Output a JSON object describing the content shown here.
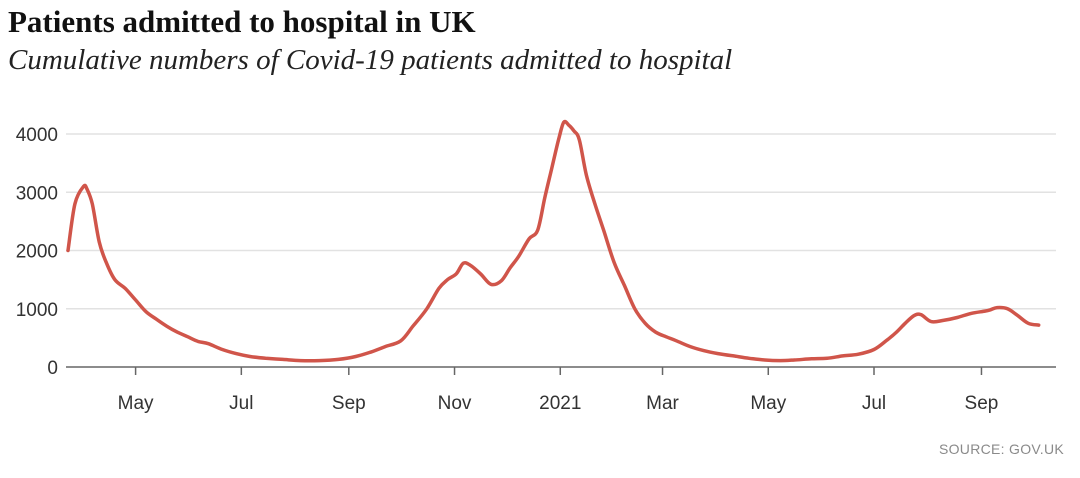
{
  "header": {
    "title": "Patients admitted to hospital in UK",
    "subtitle": "Cumulative numbers of Covid-19 patients admitted to hospital"
  },
  "footer": {
    "source": "SOURCE: GOV.UK"
  },
  "colors": {
    "line": "#d0554a",
    "grid": "#e2e2e2",
    "baseline": "#666666",
    "text": "#333333"
  },
  "chart_data": {
    "type": "line",
    "title": "Patients admitted to hospital in UK",
    "subtitle": "Cumulative numbers of Covid-19 patients admitted to hospital",
    "xlabel": "",
    "ylabel": "",
    "ylim": [
      0,
      4000
    ],
    "yticks": [
      0,
      1000,
      2000,
      3000,
      4000
    ],
    "ytick_labels": [
      "0",
      "1000",
      "2000",
      "3000",
      "4000"
    ],
    "xlim": [
      "2020-03-23",
      "2021-10-14"
    ],
    "xticks": [
      {
        "date": "2020-05-01",
        "label": "May"
      },
      {
        "date": "2020-07-01",
        "label": "Jul"
      },
      {
        "date": "2020-09-01",
        "label": "Sep"
      },
      {
        "date": "2020-11-01",
        "label": "Nov"
      },
      {
        "date": "2021-01-01",
        "label": "2021"
      },
      {
        "date": "2021-03-01",
        "label": "Mar"
      },
      {
        "date": "2021-05-01",
        "label": "May"
      },
      {
        "date": "2021-07-01",
        "label": "Jul"
      },
      {
        "date": "2021-09-01",
        "label": "Sep"
      }
    ],
    "grid": true,
    "series": [
      {
        "x": [
          "2020-03-23",
          "2020-03-27",
          "2020-04-01",
          "2020-04-03",
          "2020-04-06",
          "2020-04-10",
          "2020-04-14",
          "2020-04-19",
          "2020-04-25",
          "2020-05-01",
          "2020-05-07",
          "2020-05-13",
          "2020-05-19",
          "2020-05-25",
          "2020-05-31",
          "2020-06-06",
          "2020-06-12",
          "2020-06-20",
          "2020-06-28",
          "2020-07-06",
          "2020-07-15",
          "2020-07-25",
          "2020-08-04",
          "2020-08-15",
          "2020-08-26",
          "2020-09-05",
          "2020-09-14",
          "2020-09-22",
          "2020-10-01",
          "2020-10-08",
          "2020-10-16",
          "2020-10-23",
          "2020-10-28",
          "2020-11-02",
          "2020-11-06",
          "2020-11-10",
          "2020-11-16",
          "2020-11-22",
          "2020-11-28",
          "2020-12-03",
          "2020-12-08",
          "2020-12-14",
          "2020-12-19",
          "2020-12-23",
          "2020-12-27",
          "2020-12-31",
          "2021-01-03",
          "2021-01-06",
          "2021-01-09",
          "2021-01-12",
          "2021-01-16",
          "2021-01-21",
          "2021-01-26",
          "2021-02-01",
          "2021-02-07",
          "2021-02-13",
          "2021-02-19",
          "2021-02-25",
          "2021-03-03",
          "2021-03-09",
          "2021-03-17",
          "2021-03-25",
          "2021-04-02",
          "2021-04-11",
          "2021-04-20",
          "2021-04-29",
          "2021-05-08",
          "2021-05-16",
          "2021-05-26",
          "2021-06-04",
          "2021-06-13",
          "2021-06-22",
          "2021-07-01",
          "2021-07-08",
          "2021-07-14",
          "2021-07-19",
          "2021-07-24",
          "2021-07-28",
          "2021-08-03",
          "2021-08-10",
          "2021-08-18",
          "2021-08-26",
          "2021-09-03",
          "2021-09-06",
          "2021-09-10",
          "2021-09-16",
          "2021-09-22",
          "2021-09-28",
          "2021-10-04"
        ],
        "y": [
          2000,
          2800,
          3100,
          3050,
          2800,
          2150,
          1800,
          1500,
          1350,
          1150,
          950,
          820,
          700,
          600,
          520,
          440,
          400,
          300,
          230,
          180,
          150,
          130,
          110,
          110,
          130,
          180,
          260,
          350,
          450,
          700,
          1000,
          1350,
          1500,
          1600,
          1780,
          1750,
          1600,
          1420,
          1480,
          1700,
          1900,
          2200,
          2350,
          2900,
          3400,
          3900,
          4200,
          4150,
          4050,
          3900,
          3300,
          2800,
          2350,
          1800,
          1400,
          1000,
          750,
          600,
          520,
          450,
          350,
          280,
          230,
          190,
          150,
          120,
          110,
          120,
          140,
          150,
          190,
          220,
          300,
          450,
          600,
          750,
          880,
          900,
          780,
          800,
          850,
          920,
          960,
          980,
          1020,
          1000,
          880,
          750,
          720
        ]
      }
    ]
  }
}
